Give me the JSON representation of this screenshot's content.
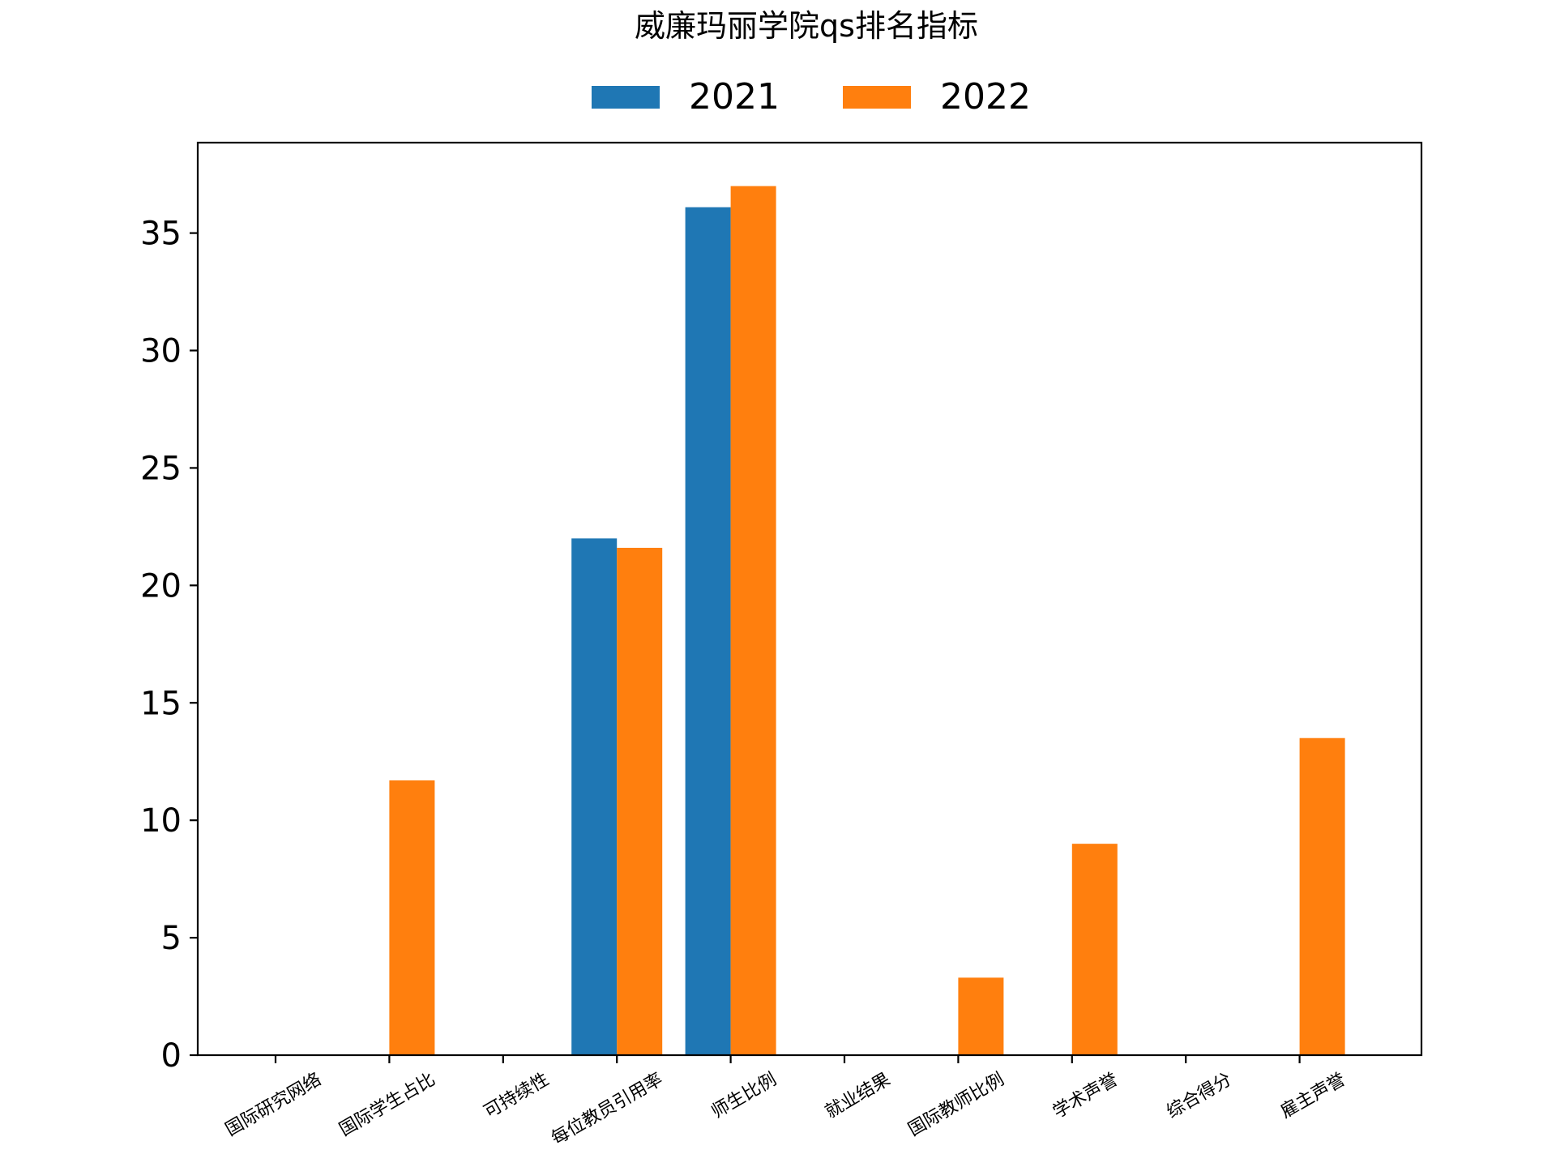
{
  "chart_data": {
    "type": "bar",
    "title": "威廉玛丽学院qs排名指标",
    "xlabel": "",
    "ylabel": "",
    "categories": [
      "国际研究网络",
      "国际学生占比",
      "可持续性",
      "每位教员引用率",
      "师生比例",
      "就业结果",
      "国际教师比例",
      "学术声誉",
      "综合得分",
      "雇主声誉"
    ],
    "series": [
      {
        "name": "2021",
        "color": "#1f77b4",
        "values": [
          0,
          0,
          0,
          22.0,
          36.1,
          0,
          0,
          0,
          0,
          0
        ]
      },
      {
        "name": "2022",
        "color": "#ff7f0e",
        "values": [
          0,
          11.7,
          0,
          21.6,
          37.0,
          0,
          3.3,
          9.0,
          0,
          13.5
        ]
      }
    ],
    "ylim": [
      0,
      38.85
    ],
    "yticks": [
      0,
      5,
      10,
      15,
      20,
      25,
      30,
      35
    ],
    "legend_position": "top-center",
    "grid": false
  }
}
